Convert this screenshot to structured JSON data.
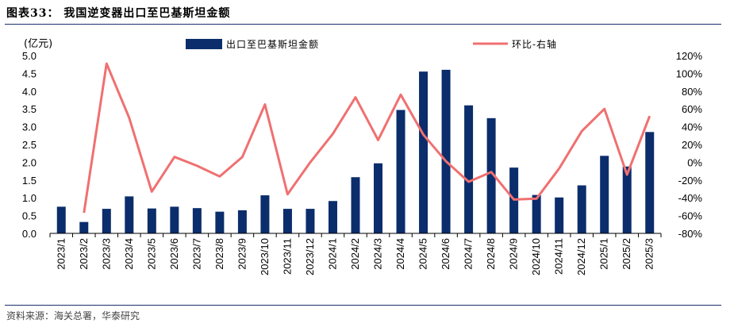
{
  "figure": {
    "title": "图表33：  我国逆变器出口至巴基斯坦金额",
    "source": "资料来源：海关总署，华泰研究"
  },
  "colors": {
    "bar": "#0b2d6b",
    "line": "#f07070",
    "rule": "#1b2f6b"
  },
  "chart_data": {
    "type": "bar",
    "unit_label": "(亿元)",
    "categories": [
      "2023/1",
      "2023/2",
      "2023/3",
      "2023/4",
      "2023/5",
      "2023/6",
      "2023/7",
      "2023/8",
      "2023/9",
      "2023/10",
      "2023/11",
      "2023/12",
      "2024/1",
      "2024/2",
      "2024/3",
      "2024/4",
      "2024/5",
      "2024/6",
      "2024/7",
      "2024/8",
      "2024/9",
      "2024/10",
      "2024/11",
      "2024/12",
      "2025/1",
      "2025/2",
      "2025/3"
    ],
    "series": [
      {
        "name": "出口至巴基斯坦金额",
        "type": "bar",
        "axis": "left",
        "values": [
          0.75,
          0.32,
          0.69,
          1.04,
          0.7,
          0.75,
          0.71,
          0.61,
          0.65,
          1.07,
          0.69,
          0.69,
          0.91,
          1.58,
          1.97,
          3.47,
          4.55,
          4.6,
          3.6,
          3.24,
          1.85,
          1.08,
          1.01,
          1.35,
          2.18,
          1.88,
          2.85
        ]
      },
      {
        "name": "环比-右轴",
        "type": "line",
        "axis": "right",
        "values": [
          null,
          -57,
          111,
          50,
          -33,
          6,
          -4,
          -16,
          6,
          65,
          -36,
          0,
          32,
          73,
          25,
          76,
          31,
          1,
          -22,
          -11,
          -42,
          -41,
          -7,
          35,
          60,
          -14,
          52
        ]
      }
    ],
    "y_left": {
      "min": 0,
      "max": 5.0,
      "step": 0.5,
      "tick_labels": [
        "0.0",
        "0.5",
        "1.0",
        "1.5",
        "2.0",
        "2.5",
        "3.0",
        "3.5",
        "4.0",
        "4.5",
        "5.0"
      ]
    },
    "y_right": {
      "min": -80,
      "max": 120,
      "step": 20,
      "tick_labels": [
        "-80%",
        "-60%",
        "-40%",
        "-20%",
        "0%",
        "20%",
        "40%",
        "60%",
        "80%",
        "100%",
        "120%"
      ]
    },
    "legend_position": "top",
    "grid": false
  }
}
